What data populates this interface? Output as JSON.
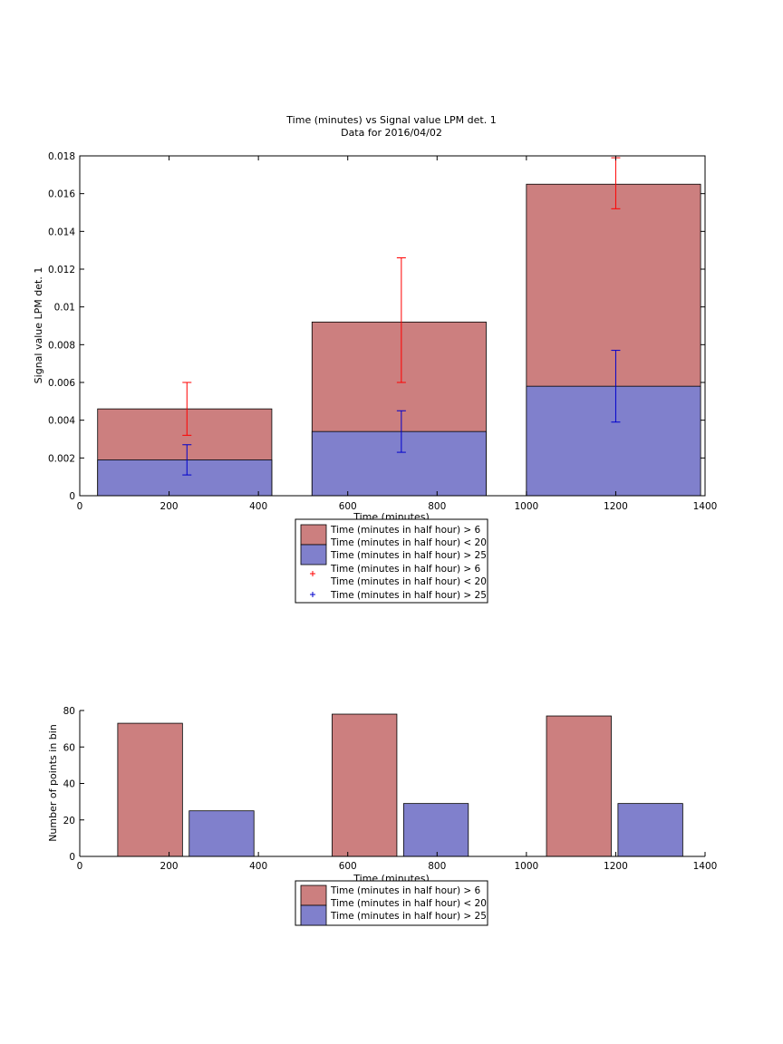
{
  "colors": {
    "red_bar": "#cc7f7f",
    "blue_bar": "#8080cc",
    "red_err": "#ff0000",
    "blue_err": "#0000cc"
  },
  "top_plot": {
    "title": "Time (minutes) vs Signal value LPM det. 1",
    "subtitle": "Data for 2016/04/02",
    "xlabel": "Time (minutes)",
    "ylabel": "Signal value LPM det. 1",
    "x_ticks": [
      "0",
      "200",
      "400",
      "600",
      "800",
      "1000",
      "1200",
      "1400"
    ],
    "y_ticks": [
      "0",
      "0.002",
      "0.004",
      "0.006",
      "0.008",
      "0.01",
      "0.012",
      "0.014",
      "0.016",
      "0.018"
    ],
    "legend": [
      {
        "line1": "Time (minutes in half hour) > 6",
        "line2": "Time (minutes in half hour) < 20"
      },
      {
        "line1": "Time (minutes in half hour) > 25",
        "line2": ""
      },
      {
        "line1": "Time (minutes in half hour) > 6",
        "line2": "Time (minutes in half hour) < 20"
      },
      {
        "line1": "Time (minutes in half hour) > 25",
        "line2": ""
      }
    ]
  },
  "bottom_plot": {
    "xlabel": "Time (minutes)",
    "ylabel": "Number of points in bin",
    "x_ticks": [
      "0",
      "200",
      "400",
      "600",
      "800",
      "1000",
      "1200",
      "1400"
    ],
    "y_ticks": [
      "0",
      "20",
      "40",
      "60",
      "80"
    ],
    "legend": [
      {
        "line1": "Time (minutes in half hour) > 6",
        "line2": "Time (minutes in half hour) < 20"
      },
      {
        "line1": "Time (minutes in half hour) > 25",
        "line2": ""
      }
    ]
  },
  "chart_data": [
    {
      "type": "bar",
      "title": "Time (minutes) vs Signal value LPM det. 1",
      "subtitle": "Data for 2016/04/02",
      "xlabel": "Time (minutes)",
      "ylabel": "Signal value LPM det. 1",
      "xlim": [
        0,
        1400
      ],
      "ylim": [
        0,
        0.018
      ],
      "bar_edges": [
        [
          40,
          430
        ],
        [
          520,
          910
        ],
        [
          1000,
          1390
        ]
      ],
      "bars": [
        {
          "series": "Time (minutes in half hour) > 6 / Time (minutes in half hour) < 20",
          "values": [
            0.0046,
            0.0092,
            0.0165
          ]
        },
        {
          "series": "Time (minutes in half hour) > 25",
          "values": [
            0.0019,
            0.0034,
            0.0058
          ]
        }
      ],
      "errorbars": [
        {
          "series": "Time (minutes in half hour) > 6 / Time (minutes in half hour) < 20",
          "x": [
            240,
            720,
            1200
          ],
          "y": [
            0.0046,
            0.0092,
            0.0165
          ],
          "low": [
            0.0032,
            0.006,
            0.0152
          ],
          "high": [
            0.006,
            0.0126,
            0.0179
          ]
        },
        {
          "series": "Time (minutes in half hour) > 25",
          "x": [
            240,
            720,
            1200
          ],
          "y": [
            0.0019,
            0.0034,
            0.0058
          ],
          "low": [
            0.0011,
            0.0023,
            0.0039
          ],
          "high": [
            0.0027,
            0.0045,
            0.0077
          ]
        }
      ]
    },
    {
      "type": "bar",
      "xlabel": "Time (minutes)",
      "ylabel": "Number of points in bin",
      "xlim": [
        0,
        1400
      ],
      "ylim": [
        0,
        80
      ],
      "series": [
        {
          "name": "Time (minutes in half hour) > 6 / Time (minutes in half hour) < 20",
          "x_ranges": [
            [
              85,
              230
            ],
            [
              565,
              710
            ],
            [
              1045,
              1190
            ]
          ],
          "values": [
            73,
            78,
            77
          ]
        },
        {
          "name": "Time (minutes in half hour) > 25",
          "x_ranges": [
            [
              245,
              390
            ],
            [
              725,
              870
            ],
            [
              1205,
              1350
            ]
          ],
          "values": [
            25,
            29,
            29
          ]
        }
      ]
    }
  ]
}
